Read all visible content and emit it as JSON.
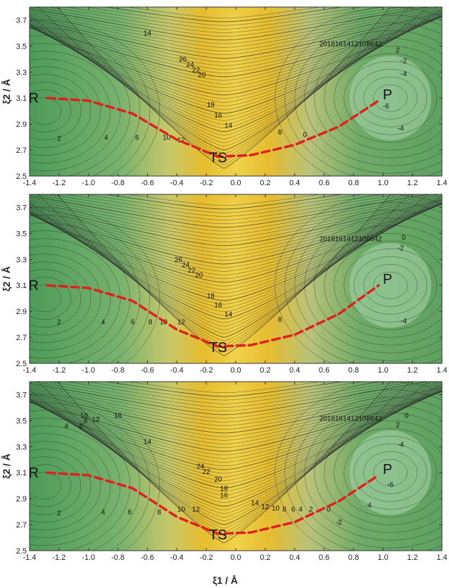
{
  "chart_data": [
    {
      "type": "contour",
      "xlim": [
        -1.4,
        1.4
      ],
      "ylim": [
        2.5,
        3.8
      ],
      "x_ticks": [
        "-1.4",
        "-1.2",
        "-1.0",
        "-0.8",
        "-0.6",
        "-0.4",
        "-0.2",
        "0.0",
        "0.2",
        "0.4",
        "0.6",
        "0.8",
        "1.0",
        "1.2",
        "1.4"
      ],
      "y_ticks": [
        "2.5",
        "2.7",
        "2.9",
        "3.1",
        "3.3",
        "3.5",
        "3.7"
      ],
      "ylabel": "ξ2 / Å",
      "points": [
        {
          "label": "R",
          "x": -1.28,
          "y": 3.1
        },
        {
          "label": "TS",
          "x": -0.12,
          "y": 2.65
        },
        {
          "label": "P",
          "x": 0.97,
          "y": 3.08
        }
      ],
      "path": [
        [
          -1.28,
          3.1
        ],
        [
          -1.0,
          3.08
        ],
        [
          -0.7,
          2.98
        ],
        [
          -0.4,
          2.78
        ],
        [
          -0.12,
          2.65
        ],
        [
          0.1,
          2.66
        ],
        [
          0.4,
          2.74
        ],
        [
          0.7,
          2.88
        ],
        [
          0.97,
          3.08
        ]
      ],
      "contour_labels": [
        {
          "text": "14",
          "x": -0.6,
          "y": 3.58
        },
        {
          "text": "26",
          "x": -0.36,
          "y": 3.38
        },
        {
          "text": "24",
          "x": -0.31,
          "y": 3.34
        },
        {
          "text": "22",
          "x": -0.27,
          "y": 3.3
        },
        {
          "text": "20",
          "x": -0.23,
          "y": 3.26
        },
        {
          "text": "18",
          "x": -0.17,
          "y": 3.03
        },
        {
          "text": "16",
          "x": -0.12,
          "y": 2.95
        },
        {
          "text": "14",
          "x": -0.05,
          "y": 2.87
        },
        {
          "text": "12",
          "x": -0.37,
          "y": 2.76
        },
        {
          "text": "10",
          "x": -0.47,
          "y": 2.78
        },
        {
          "text": "8",
          "x": 0.3,
          "y": 2.82
        },
        {
          "text": "6",
          "x": -0.67,
          "y": 2.78
        },
        {
          "text": "4",
          "x": -0.88,
          "y": 2.78
        },
        {
          "text": "2",
          "x": -1.2,
          "y": 2.77
        },
        {
          "text": "0",
          "x": 0.47,
          "y": 2.8
        },
        {
          "text": "-2",
          "x": 1.14,
          "y": 3.37
        },
        {
          "text": "-4",
          "x": 1.14,
          "y": 3.27
        },
        {
          "text": "-6",
          "x": 1.02,
          "y": 3.02
        },
        {
          "text": "-4",
          "x": 1.12,
          "y": 2.85
        },
        {
          "text": "2",
          "x": 1.1,
          "y": 3.45
        },
        {
          "text": "2018161412108642",
          "x": 0.78,
          "y": 3.5
        }
      ]
    },
    {
      "type": "contour",
      "xlim": [
        -1.4,
        1.4
      ],
      "ylim": [
        2.5,
        3.8
      ],
      "x_ticks": [
        "-1.4",
        "-1.2",
        "-1.0",
        "-0.8",
        "-0.6",
        "-0.4",
        "-0.2",
        "0.0",
        "0.2",
        "0.4",
        "0.6",
        "0.8",
        "1.0",
        "1.2",
        "1.4"
      ],
      "y_ticks": [
        "2.5",
        "2.7",
        "2.9",
        "3.1",
        "3.3",
        "3.5",
        "3.7"
      ],
      "ylabel": "ξ2 / Å",
      "points": [
        {
          "label": "R",
          "x": -1.28,
          "y": 3.1
        },
        {
          "label": "TS",
          "x": -0.12,
          "y": 2.63
        },
        {
          "label": "P",
          "x": 0.97,
          "y": 3.1
        }
      ],
      "path": [
        [
          -1.28,
          3.1
        ],
        [
          -1.0,
          3.08
        ],
        [
          -0.7,
          2.98
        ],
        [
          -0.4,
          2.76
        ],
        [
          -0.12,
          2.63
        ],
        [
          0.1,
          2.64
        ],
        [
          0.4,
          2.72
        ],
        [
          0.7,
          2.88
        ],
        [
          0.97,
          3.1
        ]
      ],
      "contour_labels": [
        {
          "text": "26",
          "x": -0.39,
          "y": 3.28
        },
        {
          "text": "24",
          "x": -0.34,
          "y": 3.24
        },
        {
          "text": "22",
          "x": -0.3,
          "y": 3.2
        },
        {
          "text": "20",
          "x": -0.25,
          "y": 3.16
        },
        {
          "text": "18",
          "x": -0.17,
          "y": 3.0
        },
        {
          "text": "16",
          "x": -0.12,
          "y": 2.93
        },
        {
          "text": "14",
          "x": -0.05,
          "y": 2.86
        },
        {
          "text": "12",
          "x": -0.37,
          "y": 2.8
        },
        {
          "text": "10",
          "x": -0.49,
          "y": 2.8
        },
        {
          "text": "8",
          "x": -0.58,
          "y": 2.8
        },
        {
          "text": "6",
          "x": -0.7,
          "y": 2.8
        },
        {
          "text": "4",
          "x": -0.9,
          "y": 2.8
        },
        {
          "text": "2",
          "x": -1.2,
          "y": 2.8
        },
        {
          "text": "8",
          "x": 0.3,
          "y": 2.82
        },
        {
          "text": "-2",
          "x": 1.12,
          "y": 3.37
        },
        {
          "text": "0",
          "x": 1.14,
          "y": 3.45
        },
        {
          "text": "-4",
          "x": 1.14,
          "y": 2.81
        },
        {
          "text": "2018161412108642",
          "x": 0.78,
          "y": 3.44
        }
      ]
    },
    {
      "type": "contour",
      "xlim": [
        -1.4,
        1.4
      ],
      "ylim": [
        2.5,
        3.8
      ],
      "x_ticks": [
        "-1.4",
        "-1.2",
        "-1.0",
        "-0.8",
        "-0.6",
        "-0.4",
        "-0.2",
        "0.0",
        "0.2",
        "0.4",
        "0.6",
        "0.8",
        "1.0",
        "1.2",
        "1.4"
      ],
      "y_ticks": [
        "2.5",
        "2.7",
        "2.9",
        "3.1",
        "3.3",
        "3.5",
        "3.7"
      ],
      "xlabel": "ξ1 / Å",
      "ylabel": "ξ2 / Å",
      "points": [
        {
          "label": "R",
          "x": -1.28,
          "y": 3.1
        },
        {
          "label": "TS",
          "x": -0.12,
          "y": 2.63
        },
        {
          "label": "P",
          "x": 0.97,
          "y": 3.08
        }
      ],
      "path": [
        [
          -1.28,
          3.1
        ],
        [
          -1.0,
          3.08
        ],
        [
          -0.7,
          2.98
        ],
        [
          -0.4,
          2.76
        ],
        [
          -0.12,
          2.63
        ],
        [
          0.1,
          2.64
        ],
        [
          0.4,
          2.72
        ],
        [
          0.7,
          2.88
        ],
        [
          0.97,
          3.08
        ]
      ],
      "contour_labels": [
        {
          "text": "10",
          "x": -1.03,
          "y": 3.52
        },
        {
          "text": "8",
          "x": -1.02,
          "y": 3.48
        },
        {
          "text": "6",
          "x": -1.05,
          "y": 3.44
        },
        {
          "text": "4",
          "x": -1.15,
          "y": 3.44
        },
        {
          "text": "12",
          "x": -0.95,
          "y": 3.49
        },
        {
          "text": "16",
          "x": -0.8,
          "y": 3.52
        },
        {
          "text": "14",
          "x": -0.6,
          "y": 3.32
        },
        {
          "text": "24",
          "x": -0.24,
          "y": 3.13
        },
        {
          "text": "22",
          "x": -0.2,
          "y": 3.09
        },
        {
          "text": "20",
          "x": -0.12,
          "y": 3.03
        },
        {
          "text": "18",
          "x": -0.08,
          "y": 2.96
        },
        {
          "text": "16",
          "x": -0.08,
          "y": 2.91
        },
        {
          "text": "14",
          "x": 0.13,
          "y": 2.85
        },
        {
          "text": "12",
          "x": 0.2,
          "y": 2.82
        },
        {
          "text": "10",
          "x": 0.27,
          "y": 2.81
        },
        {
          "text": "8",
          "x": 0.33,
          "y": 2.8
        },
        {
          "text": "6",
          "x": 0.39,
          "y": 2.8
        },
        {
          "text": "4",
          "x": 0.44,
          "y": 2.8
        },
        {
          "text": "2",
          "x": 0.51,
          "y": 2.8
        },
        {
          "text": "0",
          "x": 0.63,
          "y": 2.8
        },
        {
          "text": "-2",
          "x": 0.7,
          "y": 2.7
        },
        {
          "text": "-4",
          "x": 0.9,
          "y": 2.83
        },
        {
          "text": "-6",
          "x": 1.05,
          "y": 2.99
        },
        {
          "text": "-4",
          "x": 1.12,
          "y": 3.3
        },
        {
          "text": "2",
          "x": 1.1,
          "y": 3.45
        },
        {
          "text": "0",
          "x": 1.16,
          "y": 3.52
        },
        {
          "text": "6",
          "x": -0.72,
          "y": 2.78
        },
        {
          "text": "4",
          "x": -0.9,
          "y": 2.78
        },
        {
          "text": "2",
          "x": -1.2,
          "y": 2.77
        },
        {
          "text": "8",
          "x": -0.52,
          "y": 2.78
        },
        {
          "text": "10",
          "x": -0.37,
          "y": 2.8
        },
        {
          "text": "12",
          "x": -0.27,
          "y": 2.8
        },
        {
          "text": "2018161412108642",
          "x": 0.78,
          "y": 3.5
        }
      ]
    }
  ]
}
